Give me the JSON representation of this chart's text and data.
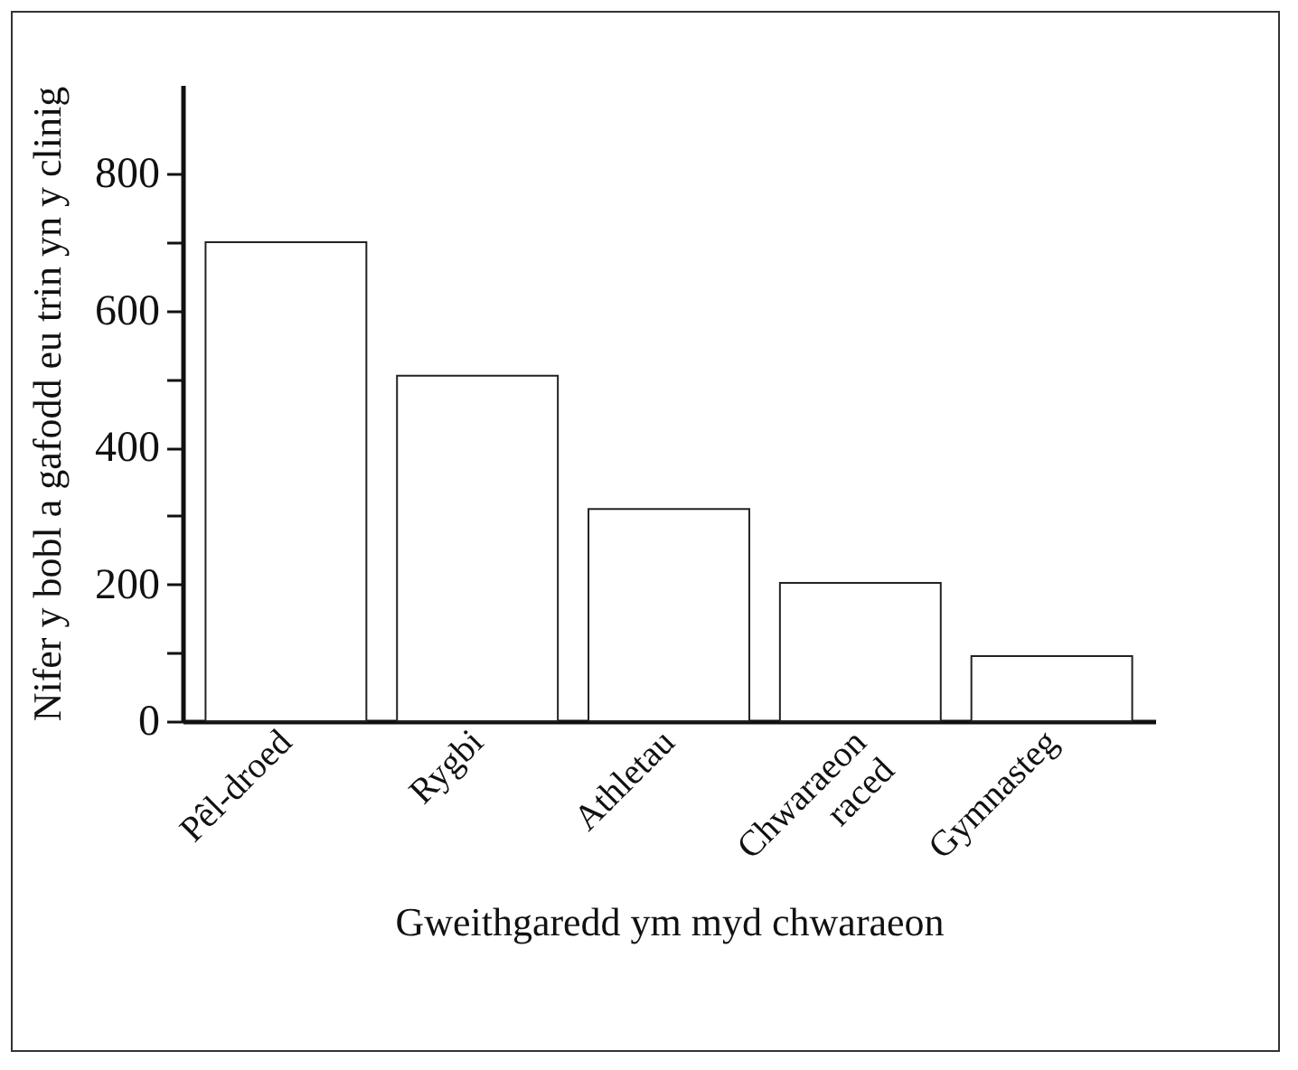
{
  "chart_data": {
    "type": "bar",
    "xlabel": "Gweithgaredd ym myd chwaraeon",
    "ylabel": "Nifer y bobl a gafodd eu trin yn y clinig",
    "categories": [
      "Pêl-droed",
      "Rygbi",
      "Athletau",
      "Chwaraeon\nraced",
      "Gymnasteg"
    ],
    "values": [
      700,
      505,
      310,
      202,
      95
    ],
    "color": "#ffffff",
    "ylim": [
      0,
      930
    ],
    "yticks": [
      0,
      {
        "value": 100,
        "label": null
      },
      200,
      {
        "value": 300,
        "label": null
      },
      400,
      {
        "value": 500,
        "label": null
      },
      600,
      {
        "value": 700,
        "label": null
      },
      800
    ],
    "grid": false
  }
}
